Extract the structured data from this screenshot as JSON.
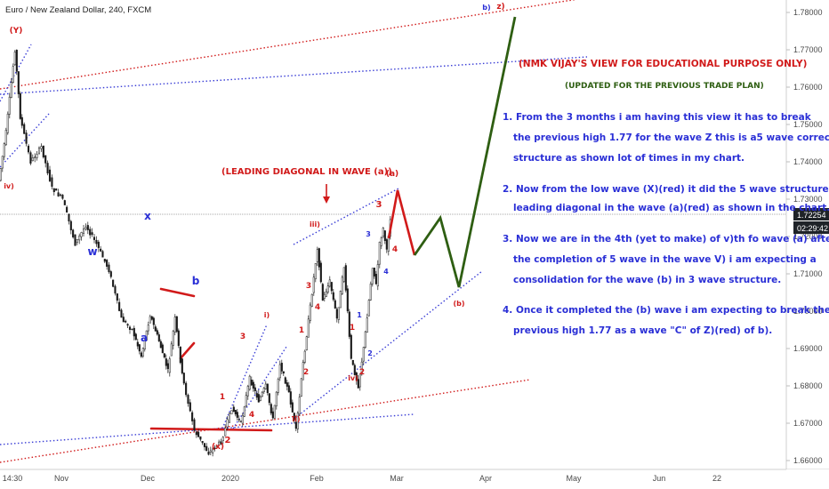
{
  "header": {
    "symbol_title": "Euro / New Zealand Dollar, 240, FXCM"
  },
  "price_badge": {
    "last_price": "1.72254",
    "countdown": "02:29:42"
  },
  "colors": {
    "candle": "#1a1a1a",
    "red_label": "#d11a1a",
    "blue_label": "#2a2fd6",
    "green_projection": "#2e5e12",
    "dotted_blue": "#3b3fd6",
    "dotted_red": "#d11a1a"
  },
  "headline": {
    "warning": "(NMK VIJAY'S VIEW FOR EDUCATIONAL PURPOSE ONLY)",
    "updated": "(UPDATED FOR THE PREVIOUS TRADE PLAN)"
  },
  "notes": [
    [
      "1. From the 3 months i am having this view it has to break",
      "the previous high 1.77 for the wave Z this is a5 wave corrective",
      "structure as shown lot of times in my chart."
    ],
    [
      "2. Now from the low wave (X)(red) it did the 5 wave structure as a",
      "leading diagonal in the wave (a)(red) as shown in the chart."
    ],
    [
      "3. Now we are in the 4th (yet to make) of v)th fo wave (a) after",
      "the completion of 5 wave in the wave V)  i am expecting a",
      "consolidation for the wave (b) in 3 wave structure."
    ],
    [
      "4. Once it completed the (b) wave i am expecting  to break the",
      "previous high 1.77 as a wave \"C\" of Z)(red) of b)."
    ]
  ],
  "annotation_leading": "(LEADING DIAGONAL IN WAVE (a))",
  "chart_data": {
    "type": "line",
    "title": "Euro / New Zealand Dollar, 240, FXCM",
    "ylabel": "",
    "ylim": [
      1.655,
      1.785
    ],
    "y_ticks": [
      "1.66000",
      "1.67000",
      "1.68000",
      "1.69000",
      "1.70000",
      "1.71000",
      "1.72000",
      "1.73000",
      "1.74000",
      "1.75000",
      "1.76000",
      "1.77000",
      "1.78000"
    ],
    "x_ticks": [
      "14:30",
      "Nov",
      "Dec",
      "2020",
      "Feb",
      "Mar",
      "Apr",
      "May",
      "Jun",
      "22"
    ],
    "series": [
      {
        "values": [
          {
            "x": "Oct 10",
            "y": 1.735
          },
          {
            "x": "Oct 14",
            "y": 1.748
          },
          {
            "x": "Oct 17",
            "y": 1.77
          },
          {
            "x": "Oct 19",
            "y": 1.752
          },
          {
            "x": "Oct 23",
            "y": 1.74
          },
          {
            "x": "Oct 27",
            "y": 1.744
          },
          {
            "x": "Nov 1",
            "y": 1.733
          },
          {
            "x": "Nov 6",
            "y": 1.73
          },
          {
            "x": "Nov 10",
            "y": 1.718
          },
          {
            "x": "Nov 14",
            "y": 1.723
          },
          {
            "x": "Nov 18",
            "y": 1.718
          },
          {
            "x": "Nov 22",
            "y": 1.711
          },
          {
            "x": "Nov 26",
            "y": 1.698
          },
          {
            "x": "Nov 30",
            "y": 1.695
          },
          {
            "x": "Dec 4",
            "y": 1.688
          },
          {
            "x": "Dec 7",
            "y": 1.699
          },
          {
            "x": "Dec 10",
            "y": 1.692
          },
          {
            "x": "Dec 13",
            "y": 1.684
          },
          {
            "x": "Dec 16",
            "y": 1.698
          },
          {
            "x": "Dec 19",
            "y": 1.683
          },
          {
            "x": "Dec 23",
            "y": 1.668
          },
          {
            "x": "Dec 27",
            "y": 1.662
          },
          {
            "x": "Dec 31",
            "y": 1.665
          },
          {
            "x": "Jan 3",
            "y": 1.674
          },
          {
            "x": "Jan 6",
            "y": 1.67
          },
          {
            "x": "Jan 9",
            "y": 1.682
          },
          {
            "x": "Jan 12",
            "y": 1.676
          },
          {
            "x": "Jan 15",
            "y": 1.68
          },
          {
            "x": "Jan 18",
            "y": 1.671
          },
          {
            "x": "Jan 21",
            "y": 1.686
          },
          {
            "x": "Jan 24",
            "y": 1.678
          },
          {
            "x": "Jan 27",
            "y": 1.668
          },
          {
            "x": "Jan 29",
            "y": 1.686
          },
          {
            "x": "Feb 1",
            "y": 1.705
          },
          {
            "x": "Feb 3",
            "y": 1.717
          },
          {
            "x": "Feb 6",
            "y": 1.703
          },
          {
            "x": "Feb 9",
            "y": 1.708
          },
          {
            "x": "Feb 12",
            "y": 1.698
          },
          {
            "x": "Feb 15",
            "y": 1.712
          },
          {
            "x": "Feb 18",
            "y": 1.687
          },
          {
            "x": "Feb 20",
            "y": 1.68
          },
          {
            "x": "Feb 23",
            "y": 1.69
          },
          {
            "x": "Feb 26",
            "y": 1.703
          },
          {
            "x": "Mar 1",
            "y": 1.712
          },
          {
            "x": "Mar 3",
            "y": 1.707
          },
          {
            "x": "Mar 6",
            "y": 1.718
          },
          {
            "x": "Mar 8",
            "y": 1.722
          },
          {
            "x": "Mar 10",
            "y": 1.716
          },
          {
            "x": "Mar 12",
            "y": 1.725
          }
        ]
      }
    ]
  },
  "wave_labels": [
    {
      "text": "(Y)",
      "color": "red"
    },
    {
      "text": "iv)",
      "color": "red"
    },
    {
      "text": "w",
      "color": "blue"
    },
    {
      "text": "x",
      "color": "blue"
    },
    {
      "text": "a",
      "color": "blue"
    },
    {
      "text": "b",
      "color": "blue"
    },
    {
      "text": "(x)",
      "color": "red"
    },
    {
      "text": "2",
      "color": "red"
    },
    {
      "text": "1",
      "color": "red"
    },
    {
      "text": "3",
      "color": "red"
    },
    {
      "text": "4",
      "color": "red"
    },
    {
      "text": "i)",
      "color": "red"
    },
    {
      "text": "ii)",
      "color": "red"
    },
    {
      "text": "1",
      "color": "red"
    },
    {
      "text": "2",
      "color": "red"
    },
    {
      "text": "3",
      "color": "red"
    },
    {
      "text": "4",
      "color": "red"
    },
    {
      "text": "iii)",
      "color": "red"
    },
    {
      "text": "iv)",
      "color": "red"
    },
    {
      "text": "1",
      "color": "red"
    },
    {
      "text": "2",
      "color": "red"
    },
    {
      "text": "1",
      "color": "blue"
    },
    {
      "text": "2",
      "color": "blue"
    },
    {
      "text": "3",
      "color": "blue"
    },
    {
      "text": "4",
      "color": "blue"
    },
    {
      "text": "3",
      "color": "red"
    },
    {
      "text": "4",
      "color": "red"
    },
    {
      "text": "(a)",
      "color": "red"
    },
    {
      "text": "(b)",
      "color": "red"
    },
    {
      "text": "b)",
      "color": "blue"
    },
    {
      "text": "z)",
      "color": "red"
    }
  ]
}
